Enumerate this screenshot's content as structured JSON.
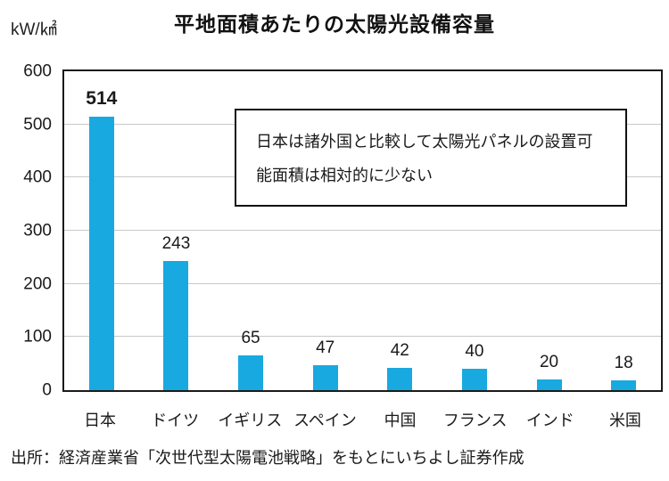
{
  "chart_data": {
    "type": "bar",
    "title": "平地面積あたりの太陽光設備容量",
    "unit_label": "kW/㎢",
    "categories": [
      "日本",
      "ドイツ",
      "イギリス",
      "スペイン",
      "中国",
      "フランス",
      "インド",
      "米国"
    ],
    "values": [
      514,
      243,
      65,
      47,
      42,
      40,
      20,
      18
    ],
    "ylim": [
      0,
      600
    ],
    "yticks": [
      0,
      100,
      200,
      300,
      400,
      500,
      600
    ],
    "grid": true,
    "legend": "none",
    "bar_color": "#19a9e1",
    "highlight_value_index": 0,
    "annotation": "日本は諸外国と比較して太陽光パネルの設置可能面積は相対的に少ない",
    "source": "出所：経済産業省「次世代型太陽電池戦略」をもとにいちよし証券作成"
  }
}
